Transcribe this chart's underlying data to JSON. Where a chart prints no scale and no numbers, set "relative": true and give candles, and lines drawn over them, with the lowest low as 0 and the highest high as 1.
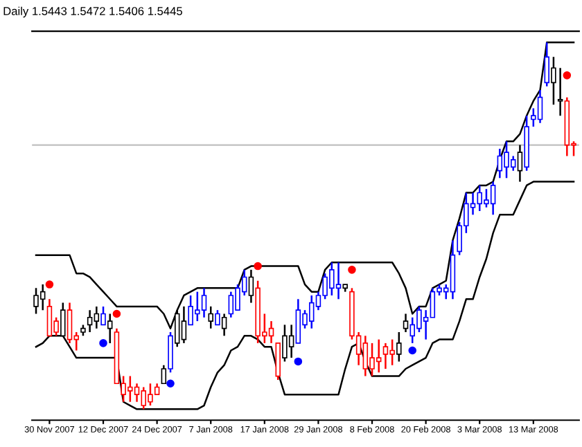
{
  "chart_data": {
    "type": "candlestick",
    "relative": true,
    "title": "Daily 1.5443 1.5472 1.5406 1.5445",
    "categories": [
      null,
      null,
      "30 Nov 2007",
      null,
      null,
      null,
      null,
      null,
      null,
      null,
      "12 Dec 2007",
      null,
      null,
      null,
      null,
      null,
      null,
      null,
      "24 Dec 2007",
      null,
      null,
      null,
      null,
      null,
      null,
      null,
      "7 Jan 2008",
      null,
      null,
      null,
      null,
      null,
      null,
      null,
      "17 Jan 2008",
      null,
      null,
      null,
      null,
      null,
      null,
      null,
      "29 Jan 2008",
      null,
      null,
      null,
      null,
      null,
      null,
      null,
      "8 Feb 2008",
      null,
      null,
      null,
      null,
      null,
      null,
      null,
      "20 Feb 2008",
      null,
      null,
      null,
      null,
      null,
      null,
      null,
      "3 Mar 2008",
      null,
      null,
      null,
      null,
      null,
      null,
      null,
      "13 Mar 2008",
      null,
      null,
      null,
      null,
      null,
      null
    ],
    "ohlc": [
      [
        0.28,
        0.33,
        0.26,
        0.31
      ],
      [
        0.32,
        0.34,
        0.27,
        0.3
      ],
      [
        0.28,
        0.3,
        0.2,
        0.2
      ],
      [
        0.24,
        0.25,
        0.2,
        0.21
      ],
      [
        0.2,
        0.29,
        0.2,
        0.27
      ],
      [
        0.27,
        0.29,
        0.18,
        0.19
      ],
      [
        0.2,
        0.21,
        0.16,
        0.19
      ],
      [
        0.21,
        0.23,
        0.2,
        0.22
      ],
      [
        0.23,
        0.27,
        0.21,
        0.25
      ],
      [
        0.24,
        0.28,
        0.22,
        0.26
      ],
      [
        0.23,
        0.28,
        0.23,
        0.26
      ],
      [
        0.22,
        0.26,
        0.18,
        0.24
      ],
      [
        0.21,
        0.22,
        0.07,
        0.07
      ],
      [
        0.07,
        0.09,
        0.02,
        0.04
      ],
      [
        0.06,
        0.09,
        0.02,
        0.05
      ],
      [
        0.06,
        0.07,
        0.02,
        0.04
      ],
      [
        0.05,
        0.06,
        0.0,
        0.01
      ],
      [
        0.04,
        0.07,
        0.01,
        0.02
      ],
      [
        0.06,
        0.07,
        0.04,
        0.04
      ],
      [
        0.07,
        0.12,
        0.07,
        0.11
      ],
      [
        0.11,
        0.21,
        0.1,
        0.2
      ],
      [
        0.18,
        0.27,
        0.17,
        0.26
      ],
      [
        0.19,
        0.28,
        0.18,
        0.24
      ],
      [
        0.23,
        0.31,
        0.23,
        0.28
      ],
      [
        0.26,
        0.32,
        0.24,
        0.27
      ],
      [
        0.27,
        0.33,
        0.25,
        0.31
      ],
      [
        0.26,
        0.28,
        0.22,
        0.24
      ],
      [
        0.23,
        0.27,
        0.23,
        0.26
      ],
      [
        0.22,
        0.26,
        0.2,
        0.25
      ],
      [
        0.26,
        0.32,
        0.25,
        0.31
      ],
      [
        0.27,
        0.34,
        0.27,
        0.33
      ],
      [
        0.32,
        0.38,
        0.31,
        0.36
      ],
      [
        0.36,
        0.38,
        0.29,
        0.31
      ],
      [
        0.33,
        0.35,
        0.18,
        0.2
      ],
      [
        0.21,
        0.26,
        0.18,
        0.2
      ],
      [
        0.22,
        0.24,
        0.18,
        0.2
      ],
      [
        0.18,
        0.18,
        0.08,
        0.09
      ],
      [
        0.14,
        0.23,
        0.13,
        0.2
      ],
      [
        0.2,
        0.23,
        0.14,
        0.17
      ],
      [
        0.18,
        0.3,
        0.18,
        0.27
      ],
      [
        0.23,
        0.27,
        0.22,
        0.26
      ],
      [
        0.24,
        0.31,
        0.22,
        0.29
      ],
      [
        0.28,
        0.32,
        0.27,
        0.31
      ],
      [
        0.31,
        0.37,
        0.3,
        0.36
      ],
      [
        0.33,
        0.4,
        0.31,
        0.38
      ],
      [
        0.33,
        0.4,
        0.3,
        0.34
      ],
      [
        0.33,
        0.34,
        0.32,
        0.34
      ],
      [
        0.32,
        0.33,
        0.19,
        0.2
      ],
      [
        0.2,
        0.21,
        0.12,
        0.15
      ],
      [
        0.18,
        0.2,
        0.09,
        0.11
      ],
      [
        0.14,
        0.18,
        0.09,
        0.11
      ],
      [
        0.14,
        0.19,
        0.1,
        0.13
      ],
      [
        0.17,
        0.18,
        0.11,
        0.15
      ],
      [
        0.16,
        0.19,
        0.12,
        0.15
      ],
      [
        0.15,
        0.21,
        0.13,
        0.18
      ],
      [
        0.22,
        0.26,
        0.21,
        0.24
      ],
      [
        0.2,
        0.25,
        0.18,
        0.23
      ],
      [
        0.22,
        0.28,
        0.21,
        0.27
      ],
      [
        0.24,
        0.27,
        0.19,
        0.25
      ],
      [
        0.25,
        0.33,
        0.25,
        0.32
      ],
      [
        0.32,
        0.34,
        0.31,
        0.33
      ],
      [
        0.32,
        0.34,
        0.3,
        0.33
      ],
      [
        0.32,
        0.46,
        0.3,
        0.42
      ],
      [
        0.43,
        0.51,
        0.42,
        0.5
      ],
      [
        0.5,
        0.59,
        0.48,
        0.56
      ],
      [
        0.55,
        0.59,
        0.53,
        0.56
      ],
      [
        0.56,
        0.61,
        0.54,
        0.59
      ],
      [
        0.56,
        0.6,
        0.55,
        0.57
      ],
      [
        0.56,
        0.62,
        0.53,
        0.61
      ],
      [
        0.65,
        0.71,
        0.63,
        0.69
      ],
      [
        0.66,
        0.73,
        0.63,
        0.7
      ],
      [
        0.66,
        0.69,
        0.65,
        0.68
      ],
      [
        0.7,
        0.72,
        0.62,
        0.65
      ],
      [
        0.66,
        0.8,
        0.65,
        0.77
      ],
      [
        0.79,
        0.82,
        0.77,
        0.8
      ],
      [
        0.79,
        0.87,
        0.78,
        0.85
      ],
      [
        0.89,
        1.0,
        0.88,
        0.96
      ],
      [
        0.89,
        0.96,
        0.83,
        0.93
      ],
      [
        0.84,
        0.93,
        0.8,
        0.84
      ],
      [
        0.84,
        0.85,
        0.69,
        0.72
      ],
      [
        0.72,
        0.73,
        0.69,
        0.72
      ]
    ],
    "colors": [
      "#000000",
      "#000000",
      "#ff0000",
      "#ff0000",
      "#000000",
      "#ff0000",
      "#ff0000",
      "#000000",
      "#000000",
      "#000000",
      "#0000ff",
      "#000000",
      "#ff0000",
      "#ff0000",
      "#ff0000",
      "#ff0000",
      "#ff0000",
      "#ff0000",
      "#ff0000",
      "#000000",
      "#0000ff",
      "#000000",
      "#000000",
      "#0000ff",
      "#0000ff",
      "#0000ff",
      "#000000",
      "#0000ff",
      "#000000",
      "#0000ff",
      "#0000ff",
      "#0000ff",
      "#000000",
      "#ff0000",
      "#ff0000",
      "#ff0000",
      "#ff0000",
      "#000000",
      "#000000",
      "#0000ff",
      "#0000ff",
      "#0000ff",
      "#0000ff",
      "#0000ff",
      "#0000ff",
      "#0000ff",
      "#000000",
      "#ff0000",
      "#ff0000",
      "#ff0000",
      "#ff0000",
      "#ff0000",
      "#ff0000",
      "#ff0000",
      "#000000",
      "#000000",
      "#0000ff",
      "#0000ff",
      "#0000ff",
      "#0000ff",
      "#0000ff",
      "#0000ff",
      "#0000ff",
      "#0000ff",
      "#0000ff",
      "#0000ff",
      "#0000ff",
      "#0000ff",
      "#0000ff",
      "#0000ff",
      "#0000ff",
      "#0000ff",
      "#000000",
      "#0000ff",
      "#0000ff",
      "#0000ff",
      "#0000ff",
      "#000000",
      "#000000",
      "#ff0000",
      "#ff0000"
    ],
    "series": [
      {
        "type": "line",
        "color": "#000000",
        "values": [
          0.42,
          0.42,
          0.42,
          0.42,
          0.42,
          0.42,
          0.37,
          0.37,
          0.36,
          0.34,
          0.32,
          0.3,
          0.28,
          0.28,
          0.28,
          0.28,
          0.28,
          0.28,
          0.28,
          0.26,
          0.22,
          0.27,
          0.31,
          0.32,
          0.33,
          0.33,
          0.33,
          0.33,
          0.33,
          0.33,
          0.33,
          0.38,
          0.39,
          0.39,
          0.39,
          0.39,
          0.39,
          0.39,
          0.39,
          0.39,
          0.34,
          0.32,
          0.32,
          0.38,
          0.4,
          0.4,
          0.4,
          0.4,
          0.4,
          0.4,
          0.4,
          0.4,
          0.4,
          0.4,
          0.37,
          0.33,
          0.26,
          0.28,
          0.28,
          0.33,
          0.34,
          0.35,
          0.46,
          0.52,
          0.59,
          0.59,
          0.61,
          0.61,
          0.62,
          0.68,
          0.73,
          0.73,
          0.75,
          0.8,
          0.84,
          0.87,
          1.0,
          1.0,
          1.0,
          1.0,
          1.0
        ]
      },
      {
        "type": "line",
        "color": "#000000",
        "values": [
          0.17,
          0.18,
          0.2,
          0.2,
          0.2,
          0.17,
          0.14,
          0.14,
          0.14,
          0.14,
          0.14,
          0.14,
          0.14,
          0.02,
          0.01,
          0.0,
          0.0,
          0.0,
          0.0,
          0.0,
          0.0,
          0.0,
          0.0,
          0.0,
          0.0,
          0.01,
          0.06,
          0.1,
          0.12,
          0.16,
          0.17,
          0.2,
          0.2,
          0.19,
          0.17,
          0.17,
          0.1,
          0.04,
          0.04,
          0.04,
          0.04,
          0.04,
          0.04,
          0.04,
          0.04,
          0.04,
          0.11,
          0.17,
          0.18,
          0.13,
          0.09,
          0.09,
          0.09,
          0.09,
          0.09,
          0.11,
          0.12,
          0.13,
          0.14,
          0.18,
          0.19,
          0.19,
          0.19,
          0.24,
          0.3,
          0.3,
          0.36,
          0.41,
          0.48,
          0.53,
          0.53,
          0.53,
          0.57,
          0.61,
          0.62,
          0.62,
          0.62,
          0.62,
          0.62,
          0.62,
          0.62
        ]
      },
      {
        "type": "scatter",
        "color": "#ff0000",
        "values": [
          null,
          null,
          0.34,
          null,
          null,
          null,
          null,
          null,
          null,
          null,
          null,
          null,
          0.26,
          null,
          null,
          null,
          null,
          null,
          null,
          null,
          null,
          null,
          null,
          null,
          null,
          null,
          null,
          null,
          null,
          null,
          null,
          null,
          null,
          0.39,
          null,
          null,
          null,
          null,
          null,
          null,
          null,
          null,
          null,
          null,
          null,
          null,
          null,
          0.38,
          null,
          null,
          null,
          null,
          null,
          null,
          null,
          null,
          null,
          null,
          null,
          null,
          null,
          null,
          null,
          null,
          null,
          null,
          null,
          null,
          null,
          null,
          null,
          null,
          null,
          null,
          null,
          null,
          null,
          null,
          null,
          0.91,
          null
        ]
      },
      {
        "type": "scatter",
        "color": "#0000ff",
        "values": [
          null,
          null,
          null,
          null,
          null,
          null,
          null,
          null,
          null,
          null,
          0.18,
          null,
          null,
          null,
          null,
          null,
          null,
          null,
          null,
          null,
          0.07,
          null,
          null,
          null,
          null,
          null,
          null,
          null,
          null,
          null,
          null,
          null,
          null,
          null,
          null,
          null,
          null,
          null,
          null,
          0.13,
          null,
          null,
          null,
          null,
          null,
          null,
          null,
          null,
          null,
          null,
          null,
          null,
          null,
          null,
          null,
          null,
          0.16,
          null,
          null,
          null,
          null,
          null,
          null,
          null,
          null,
          null,
          null,
          null,
          null,
          null,
          null,
          null,
          null,
          null,
          null,
          null,
          null,
          null,
          null,
          null,
          null
        ]
      }
    ],
    "ref_lines": [
      {
        "axis": "y",
        "value": 0.72,
        "color": "#c0c0c0"
      }
    ],
    "grid": false,
    "legend": false
  }
}
